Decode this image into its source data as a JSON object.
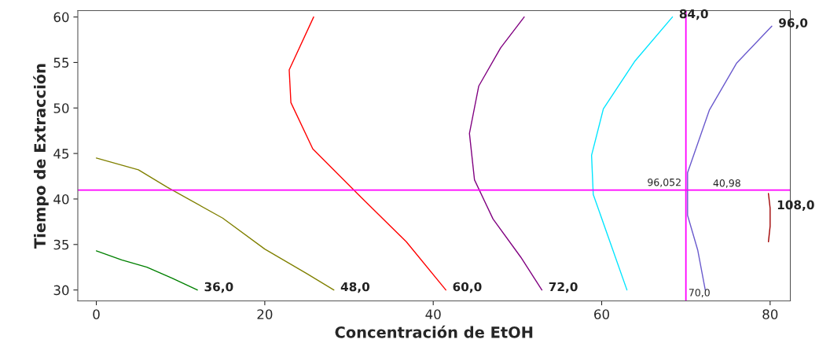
{
  "chart_data": {
    "type": "line",
    "xlabel": "Concentración de EtOH",
    "ylabel": "Tiempo de Extracción",
    "xlim": [
      -2.2,
      82.4
    ],
    "ylim": [
      28.8,
      60.7
    ],
    "xticks": [
      0,
      20,
      40,
      60,
      80
    ],
    "yticks": [
      30,
      35,
      40,
      45,
      50,
      55,
      60
    ],
    "grid": false,
    "marker": "none",
    "line_style": "solid",
    "series": [
      {
        "name": "36,0",
        "color": "#008000",
        "x": [
          0,
          3,
          6,
          9,
          12
        ],
        "values": [
          34.3,
          33.3,
          32.5,
          31.3,
          30
        ]
      },
      {
        "name": "48,0",
        "color": "#808000",
        "x": [
          0,
          5,
          8.4,
          15,
          20,
          25,
          28.2
        ],
        "values": [
          44.5,
          43.2,
          41.3,
          37.9,
          34.5,
          31.8,
          30
        ]
      },
      {
        "name": "60,0",
        "color": "#ff0000",
        "x": [
          25.8,
          22.9,
          23.1,
          25.7,
          31.2,
          36.8,
          41.5
        ],
        "values": [
          60,
          54.2,
          50.6,
          45.5,
          40.4,
          35.3,
          30
        ]
      },
      {
        "name": "72,0",
        "color": "#800080",
        "x": [
          50.8,
          48,
          45.4,
          44.3,
          44.9,
          47.1,
          50.4,
          52.9
        ],
        "values": [
          60,
          56.6,
          52.4,
          47.2,
          42.1,
          37.8,
          33.6,
          30
        ]
      },
      {
        "name": "84,0",
        "color": "#00e5ff",
        "x": [
          68.4,
          63.9,
          60.2,
          58.8,
          59,
          60.6,
          63
        ],
        "values": [
          60,
          55.1,
          49.9,
          44.8,
          40.5,
          36.3,
          30
        ]
      },
      {
        "name": "96,0",
        "color": "#6a5acd",
        "x": [
          80.2,
          76,
          72.8,
          70.2,
          70.2,
          71.4,
          72.3
        ],
        "values": [
          59,
          54.9,
          49.8,
          42.9,
          38.2,
          34.4,
          30
        ]
      },
      {
        "name": "108,0",
        "color": "#a00000",
        "x": [
          79.8,
          80,
          80,
          79.8
        ],
        "values": [
          40.6,
          39,
          37,
          35.3
        ]
      }
    ],
    "ref_lines": [
      {
        "axis": "x",
        "value": 70,
        "label": "70,0",
        "color": "#ff00ff"
      },
      {
        "axis": "y",
        "value": 40.98,
        "label": "40,98",
        "color": "#ff00ff"
      }
    ],
    "annotations": [
      {
        "text": "96,052",
        "x": 70,
        "y": 40.98
      }
    ]
  }
}
